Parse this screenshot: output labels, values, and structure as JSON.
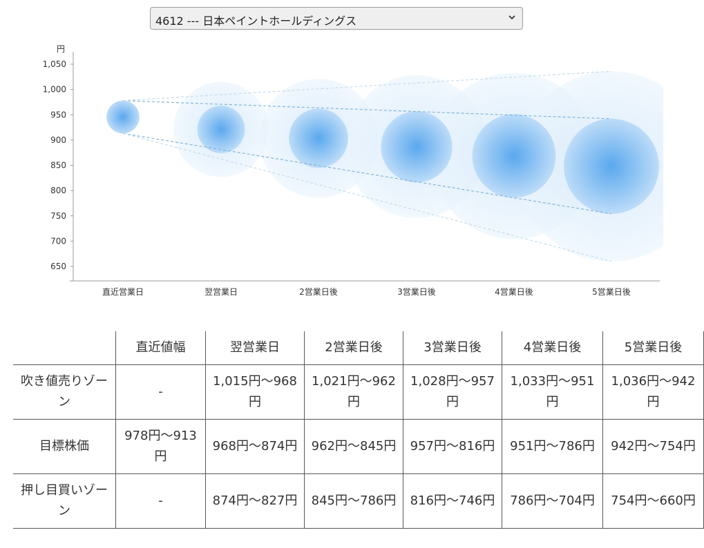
{
  "selector": {
    "value": "4612 --- 日本ペイントホールディングス"
  },
  "chart_data": {
    "type": "bubble-range",
    "y_unit": "円",
    "yticks": [
      1050,
      1000,
      950,
      900,
      850,
      800,
      750,
      700,
      650
    ],
    "ytick_labels": [
      "1,050",
      "1,000",
      "950",
      "900",
      "850",
      "800",
      "750",
      "700",
      "650"
    ],
    "ylim": [
      625,
      1075
    ],
    "categories": [
      "直近営業日",
      "翌営業日",
      "2営業日後",
      "3営業日後",
      "4営業日後",
      "5営業日後"
    ],
    "target_range": [
      [
        978,
        913
      ],
      [
        968,
        874
      ],
      [
        962,
        845
      ],
      [
        957,
        816
      ],
      [
        951,
        786
      ],
      [
        942,
        754
      ]
    ],
    "outer_range": [
      null,
      [
        1015,
        827
      ],
      [
        1021,
        786
      ],
      [
        1028,
        746
      ],
      [
        1033,
        704
      ],
      [
        1036,
        660
      ]
    ],
    "colors": {
      "inner": "#5aa8ee",
      "outer": "#d6eafb",
      "line": "#7fb3d8",
      "outer_line": "#c6dcec",
      "axis": "#999999"
    }
  },
  "table": {
    "headers": [
      "",
      "直近値幅",
      "翌営業日",
      "2営業日後",
      "3営業日後",
      "4営業日後",
      "5営業日後"
    ],
    "rows": [
      {
        "label": "吹き値売りゾーン",
        "cells": [
          "-",
          "1,015円～968円",
          "1,021円～962円",
          "1,028円～957円",
          "1,033円～951円",
          "1,036円～942円"
        ]
      },
      {
        "label": "目標株価",
        "cells": [
          "978円～913円",
          "968円～874円",
          "962円～845円",
          "957円～816円",
          "951円～786円",
          "942円～754円"
        ]
      },
      {
        "label": "押し目買いゾーン",
        "cells": [
          "-",
          "874円～827円",
          "845円～786円",
          "816円～746円",
          "786円～704円",
          "754円～660円"
        ]
      }
    ]
  }
}
